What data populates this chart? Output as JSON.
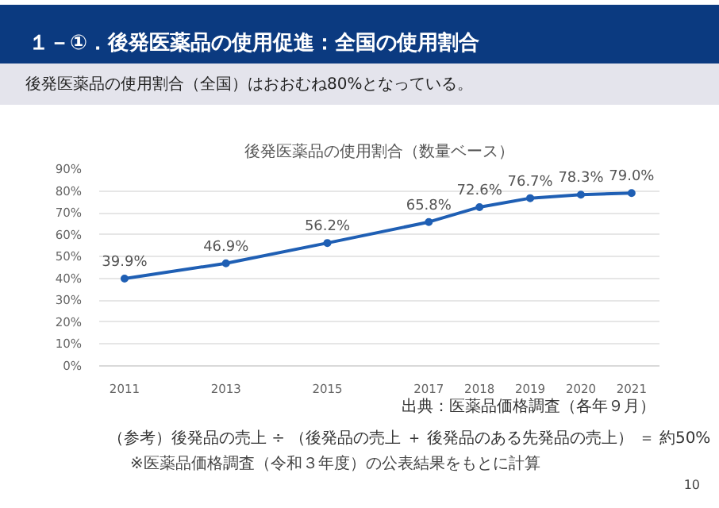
{
  "chart_data": {
    "type": "line",
    "title": "１－①．後発医薬品の使用促進：全国の使用割合",
    "subtitle": "後発医薬品の使用割合（全国）はおおむね80%となっている。",
    "x": [
      2011,
      2013,
      2015,
      2017,
      2018,
      2019,
      2020,
      2021
    ],
    "xlim": [
      2010.5,
      2021.55
    ],
    "xticks": [
      2011,
      2013,
      2015,
      2017,
      2018,
      2019,
      2020,
      2021
    ],
    "ylim": [
      0,
      90
    ],
    "yticks": [
      {
        "value": 0,
        "label": "0%"
      },
      {
        "value": 10,
        "label": "10%"
      },
      {
        "value": 20,
        "label": "20%"
      },
      {
        "value": 30,
        "label": "30%"
      },
      {
        "value": 40,
        "label": "40%"
      },
      {
        "value": 50,
        "label": "50%"
      },
      {
        "value": 60,
        "label": "60%"
      },
      {
        "value": 70,
        "label": "70%"
      },
      {
        "value": 80,
        "label": "80%"
      },
      {
        "value": 90,
        "label": "90%"
      }
    ],
    "series": [
      {
        "color": "#1f5fb4",
        "values": [
          39.9,
          46.9,
          56.2,
          65.8,
          72.6,
          76.7,
          78.3,
          79.0
        ],
        "value_labels": [
          "39.9%",
          "46.9%",
          "56.2%",
          "65.8%",
          "72.6%",
          "76.7%",
          "78.3%",
          "79.0%"
        ]
      }
    ],
    "marker": "circle",
    "line_style": "solid",
    "grid": "y",
    "annotations": [
      "後発医薬品の使用割合（数量ベース）",
      "出典：医薬品価格調査（各年９月）",
      "（参考）後発品の売上 ÷ （後発品の売上 ＋ 後発品のある先発品の売上） ＝ 約50%",
      "※医薬品価格調査（令和３年度）の公表結果をもとに計算",
      "10"
    ]
  }
}
